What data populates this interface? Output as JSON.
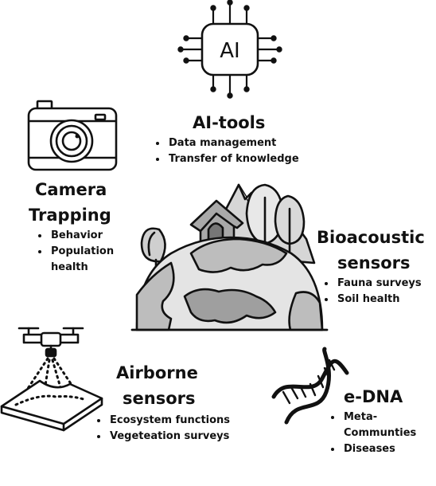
{
  "sections": {
    "ai_tools": {
      "icon_label": "AI",
      "title": "AI-tools",
      "items": [
        "Data management",
        "Transfer of knowledge"
      ]
    },
    "camera_trapping": {
      "title_line1": "Camera",
      "title_line2": "Trapping",
      "items": [
        "Behavior",
        "Population",
        "health"
      ]
    },
    "bioacoustic": {
      "title_line1": "Bioacoustic",
      "title_line2": "sensors",
      "items": [
        "Fauna surveys",
        "Soil health"
      ]
    },
    "airborne": {
      "title_line1": "Airborne",
      "title_line2": "sensors",
      "items": [
        "Ecosystem functions",
        "Vegeteation surveys"
      ]
    },
    "edna": {
      "title": "e-DNA",
      "items": [
        "Meta-",
        "Communties",
        "Diseases"
      ]
    }
  },
  "icons": {
    "ai_chip": "ai-chip-icon",
    "camera": "camera-icon",
    "landscape": "earth-landscape-icon",
    "drone": "drone-icon",
    "dna": "dna-icon"
  },
  "colors": {
    "ink": "#111111",
    "fill_light": "#e6e6e6",
    "fill_mid": "#bdbdbd",
    "fill_dark": "#8f8f8f"
  }
}
